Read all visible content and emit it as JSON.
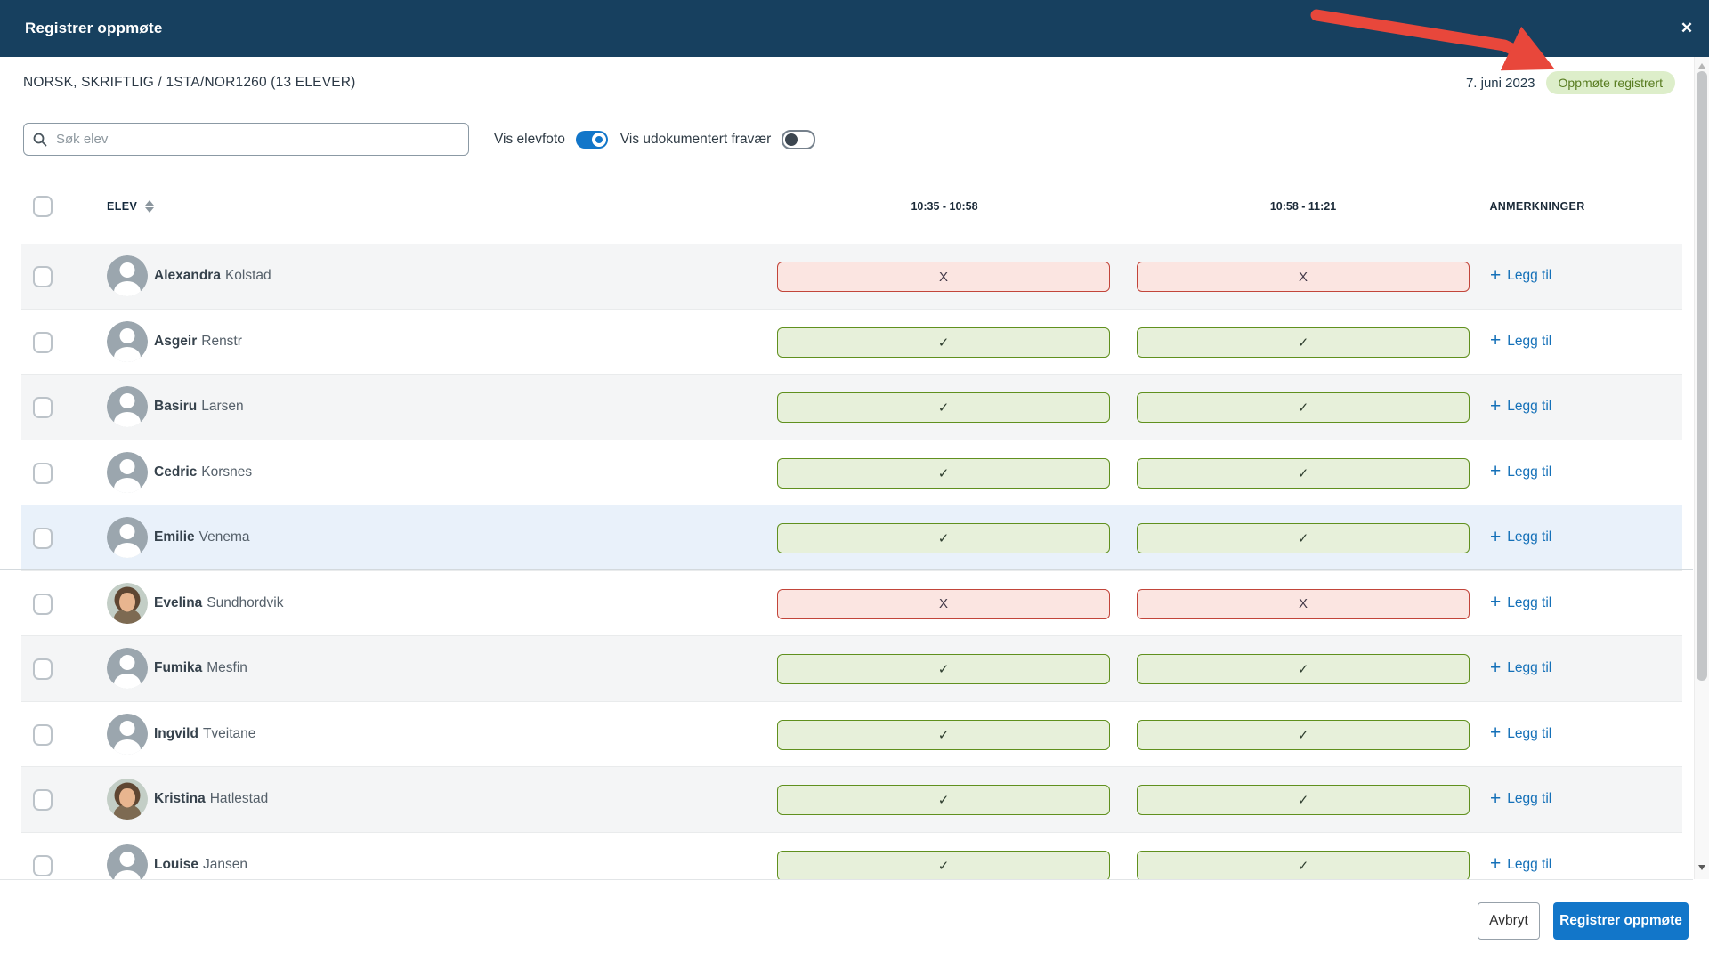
{
  "modal": {
    "title": "Registrer oppmøte",
    "close_icon": "✕",
    "course_title": "NORSK, SKRIFTLIG / 1STA/NOR1260 (13 ELEVER)",
    "date": "7. juni 2023",
    "status_badge": "Oppmøte registrert"
  },
  "controls": {
    "search_placeholder": "Søk elev",
    "toggle_photo_label": "Vis elevfoto",
    "toggle_photo_on": true,
    "toggle_absence_label": "Vis udokumentert fravær",
    "toggle_absence_on": false
  },
  "table": {
    "columns": {
      "student": "ELEV",
      "session1": "10:35 - 10:58",
      "session2": "10:58 - 11:21",
      "remarks": "ANMERKNINGER"
    },
    "present_symbol": "✓",
    "absent_symbol": "X",
    "add_remark_label": "Legg til",
    "rows": [
      {
        "first": "Alexandra",
        "last": "Kolstad",
        "s1": "absent",
        "s2": "absent",
        "avatar": "placeholder",
        "highlight": false
      },
      {
        "first": "Asgeir",
        "last": "Renstr",
        "s1": "present",
        "s2": "present",
        "avatar": "placeholder",
        "highlight": false
      },
      {
        "first": "Basiru",
        "last": "Larsen",
        "s1": "present",
        "s2": "present",
        "avatar": "placeholder",
        "highlight": false
      },
      {
        "first": "Cedric",
        "last": "Korsnes",
        "s1": "present",
        "s2": "present",
        "avatar": "placeholder",
        "highlight": false
      },
      {
        "first": "Emilie",
        "last": "Venema",
        "s1": "present",
        "s2": "present",
        "avatar": "placeholder",
        "highlight": true
      },
      {
        "first": "Evelina",
        "last": "Sundhordvik",
        "s1": "absent",
        "s2": "absent",
        "avatar": "photo",
        "highlight": false
      },
      {
        "first": "Fumika",
        "last": "Mesfin",
        "s1": "present",
        "s2": "present",
        "avatar": "placeholder",
        "highlight": false
      },
      {
        "first": "Ingvild",
        "last": "Tveitane",
        "s1": "present",
        "s2": "present",
        "avatar": "placeholder",
        "highlight": false
      },
      {
        "first": "Kristina",
        "last": "Hatlestad",
        "s1": "present",
        "s2": "present",
        "avatar": "photo",
        "highlight": false
      },
      {
        "first": "Louise",
        "last": "Jansen",
        "s1": "present",
        "s2": "present",
        "avatar": "placeholder",
        "highlight": false
      }
    ]
  },
  "footer": {
    "cancel_label": "Avbryt",
    "submit_label": "Registrer oppmøte"
  },
  "colors": {
    "header_bg": "#17405f",
    "primary_blue": "#1276c9",
    "link_blue": "#1470b8",
    "present_bg": "#e7f0da",
    "present_border": "#60901e",
    "absent_bg": "#fbe5e1",
    "absent_border": "#c2453a",
    "badge_bg": "#ddeeca",
    "badge_text": "#587c20",
    "annotation_arrow": "#e8473b"
  }
}
